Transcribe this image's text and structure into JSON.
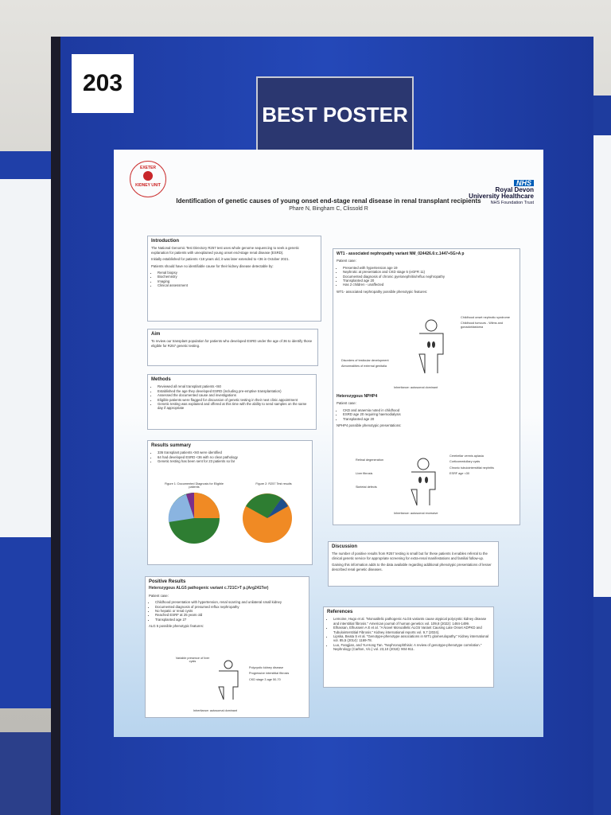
{
  "card": {
    "number": "203"
  },
  "plaque": {
    "title": "BEST POSTER"
  },
  "poster": {
    "logo": {
      "line1": "EXETER",
      "line2": "KIDNEY UNIT"
    },
    "nhs": {
      "badge": "NHS",
      "org1": "Royal Devon",
      "org2": "University Healthcare",
      "trust": "NHS Foundation Trust"
    },
    "title": "Identification of genetic causes of young onset end-stage renal disease in renal transplant recipients",
    "authors": "Phare N, Bingham C, Clissold R",
    "introduction": {
      "heading": "Introduction",
      "p1": "The National Genomic Test Directory R257 test uses whole genome sequencing to seek a genetic explanation for patients with unexplained young onset end-stage renal disease (ESRD).",
      "p2": "Initially established for patients <18 years old, it was later extended to <36 in October 2021.",
      "p3": "Patients should have no identifiable cause for their kidney disease detectable by:",
      "items": [
        "Renal biopsy",
        "Biochemistry",
        "Imaging",
        "Clinical assessment"
      ]
    },
    "aim": {
      "heading": "Aim",
      "p1": "To review our transplant population for patients who developed ESRD under the age of 36 to identify those eligible for R257 genetic testing."
    },
    "methods": {
      "heading": "Methods",
      "items": [
        "Reviewed all renal transplant patients <60",
        "Established the age they developed ESRD (including pre-emptive transplantation)",
        "Assessed the documented cause and investigations",
        "Eligible patients were flagged for discussion of genetic testing in their next clinic appointment",
        "Genetic testing was explained and offered at this time with the ability to send samples on the same day if appropriate"
      ]
    },
    "results": {
      "heading": "Results summary",
      "items": [
        "336 transplant patients <60 were identified",
        "64 had developed ESRD <36 with no clear pathology",
        "Genetic testing has been sent for 23 patients so far"
      ],
      "fig1": "Figure 1: Documented Diagnosis for Eligible patients",
      "fig2": "Figure 2: R257 Test results"
    },
    "positive": {
      "heading": "Positive Results",
      "variant": "Heterozygous ALG5 pathogenic variant c.721C>T p.(Arg241Ter)",
      "case": "Patient case:",
      "items": [
        "Childhood presentation with hypertension, renal scarring and unilateral small kidney",
        "Documented diagnosis of presumed reflux nephropathy",
        "No hepatic or renal cysts",
        "Reached ESRF at 25 years old",
        "Transplanted age 27"
      ],
      "features": "ALG 5 possible phenotypic features:",
      "left": "Variable presence of liver cysts",
      "right": [
        "Polycystic kidney disease",
        "Progressive interstitial fibrosis",
        "CKD stage 3 age 50-70"
      ],
      "inheritance": "Inheritance: autosomal dominant"
    },
    "wt1": {
      "heading": "WT1 - associated nephropathy variant NM_024426.6:c.1447+5G>A p",
      "case": "Patient case:",
      "items": [
        "Presented with hypertension age 19",
        "Nephrotic at presentation and CKD stage 5 (eGFR 11)",
        "Documented diagnosis of chronic pyelonephritis/reflux nephropathy",
        "Transplanted age 20",
        "Has 2 children - unaffected"
      ],
      "features": "WT1- associated nephropathy possible phenotypic features:",
      "right": [
        "Childhood onset nephrotic syndrome",
        "Childhood tumours - Wilms and gonadoblastoma"
      ],
      "left": [
        "Disorders of testicular development",
        "Abnormalities of external genitalia"
      ],
      "inheritance": "Inheritance: autosomal dominant"
    },
    "nphp4": {
      "heading": "Heterozygous NPHP4",
      "case": "Patient case:",
      "items": [
        "CKD and anaemia noted in childhood",
        "ESRD age 20 requiring haemodialysis",
        "Transplanted age 20"
      ],
      "features": "NPHP4 possible phenotypic presentations:",
      "left": [
        "Retinal degeneration",
        "Liver fibrosis",
        "Skeletal defects"
      ],
      "right": [
        "Cerebellar vermis aplasia",
        "Corticomedullary cysts",
        "Chronic tubulointerstitial nephritis",
        "ESRF age <30"
      ],
      "inheritance": "Inheritance: autosomal recessive"
    },
    "discussion": {
      "heading": "Discussion",
      "p1": "The number of positive results from R257 testing is small but for these patients it enables referral to the clinical genetic service for appropriate screening for extra-renal manifestations and familial follow-up.",
      "p2": "Gaining this information adds to the data available regarding additional phenotypic presentations of lesser described renal genetic diseases."
    },
    "references": {
      "heading": "References",
      "items": [
        "Lemoine, Hugo et al. \"Monoallelic pathogenic ALG5 variants cause atypical polycystic kidney disease and interstitial fibrosis.\" American journal of human genetics vol. 109,8 (2022): 1484-1499.",
        "Elhassan, Elhussein A E et al. \"A Novel Monoallelic ALG5 Variant Causing Late Onset ADPKD and Tubulointerstitial Fibrosis.\" Kidney international reports vol. 9,7 (2024).",
        "Lipska, Beata S et al. \"Genotype-phenotype associations in WT1 glomerulopathy.\" Kidney international vol. 85,5 (2014): 1169-78.",
        "Luo, Fangjian, and Yu-Hong Tan. \"Nephronophthisis: A review of genotype-phenotype correlation.\" Nephrology (Carlton, Vic.) vol. 23,10 (2018): 904-911."
      ]
    }
  }
}
